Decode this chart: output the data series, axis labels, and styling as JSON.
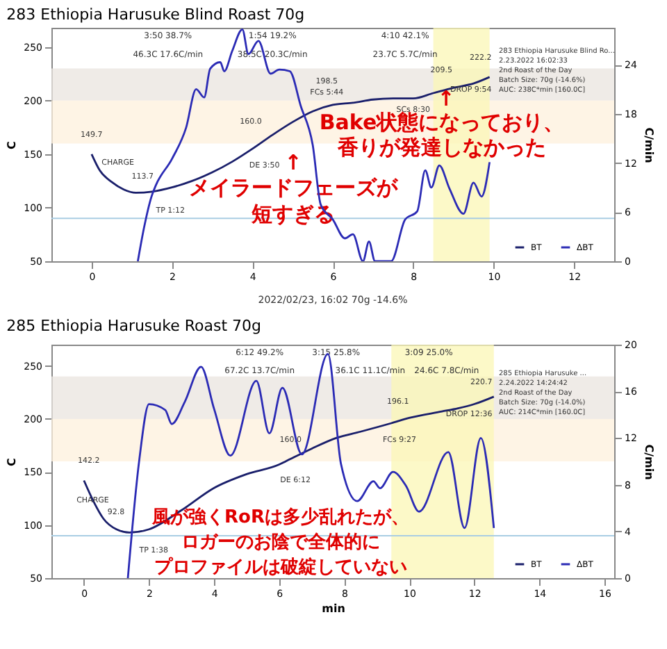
{
  "chart_data": [
    {
      "type": "line",
      "title": "283 Ethiopia Harusuke Blind Roast 70g",
      "ylabel": "C",
      "y2label": "C/min",
      "xlim": [
        -1,
        13
      ],
      "xticks": [
        0,
        2,
        4,
        6,
        8,
        10,
        12
      ],
      "ylim": [
        50,
        268
      ],
      "yticks": [
        50,
        100,
        150,
        200,
        250
      ],
      "y2lim": [
        0,
        28.5
      ],
      "y2ticks": [
        0,
        6,
        12,
        18,
        24
      ],
      "legend": "bottom right",
      "series": [
        {
          "name": "BT",
          "color": "#1a1f6b",
          "x": [
            0,
            0.2,
            0.5,
            0.8,
            1.1,
            1.5,
            2,
            2.5,
            3,
            3.5,
            4,
            4.5,
            5,
            5.5,
            6,
            6.5,
            7,
            7.5,
            8,
            8.5,
            9,
            9.5,
            9.9
          ],
          "values": [
            150,
            135,
            124,
            117,
            114,
            115,
            119,
            125,
            133,
            143,
            155,
            168,
            180,
            190,
            196,
            198,
            201,
            202,
            202,
            207,
            212,
            216,
            222
          ]
        },
        {
          "name": "ΔBT",
          "color": "#2b2bb5",
          "axis": "y2",
          "x": [
            1.15,
            1.3,
            1.49,
            1.6,
            2.0,
            2.35,
            2.6,
            2.8,
            2.95,
            3.2,
            3.3,
            3.5,
            3.75,
            3.9,
            4.15,
            4.45,
            4.67,
            4.93,
            5.2,
            5.5,
            5.7,
            6.0,
            6.3,
            6.5,
            6.75,
            6.9,
            7.05,
            7.45,
            7.8,
            8.1,
            8.3,
            8.45,
            8.65,
            8.9,
            9.25,
            9.5,
            9.7,
            9.9
          ],
          "values": [
            0,
            4,
            7.9,
            9.3,
            12.5,
            16.3,
            21,
            20,
            23.5,
            24.3,
            23.2,
            25.7,
            28.3,
            25.3,
            26.9,
            22.9,
            23.4,
            23.2,
            19,
            14.2,
            6.9,
            5.1,
            2.8,
            3.3,
            0,
            2.4,
            0,
            0,
            5.1,
            6.1,
            11.1,
            9,
            11.7,
            8.9,
            5.8,
            9.6,
            7.9,
            12.1
          ]
        }
      ],
      "bands": [
        {
          "axis": "y",
          "from": 200,
          "to": 230,
          "color": "#e9e4df"
        },
        {
          "axis": "y",
          "from": 160,
          "to": 200,
          "color": "#fdf0dc"
        },
        {
          "axis": "x",
          "from": 8.5,
          "to": 9.9,
          "color": "#fbf7b5"
        }
      ],
      "ref_lines": [
        {
          "axis": "y",
          "value": 90,
          "color": "#a9cde3"
        }
      ],
      "annotations": [
        "3:50  38.7%",
        "1:54  19.2%",
        "4:10  42.1%",
        "46.3C  17.6C/min",
        "38.5C  20.3C/min",
        "23.7C  5.7C/min",
        "149.7",
        "CHARGE",
        "113.7",
        "TP 1:12",
        "160.0",
        "DE 3:50",
        "198.5",
        "FCs 5:44",
        "209.5",
        "SCs 8:30",
        "222.2",
        "DROP 9:54",
        "283 Ethiopia Harusuke Blind Ro...\n2.23.2022 16:02:33\n2nd Roast of the Day\nBatch Size: 70g (-14.6%)\nAUC: 238C*min [160.0C]",
        "↑",
        "Bake状態になっており、",
        "香りが発達しなかった",
        "↑",
        "メイラードフェーズが",
        "短すぎる",
        "2022/02/23, 16:02   70g   -14.6%"
      ]
    },
    {
      "type": "line",
      "title": "285 Ethiopia Harusuke Roast 70g",
      "xlabel": "min",
      "ylabel": "C",
      "y2label": "C/min",
      "xlim": [
        -1,
        16.3
      ],
      "xticks": [
        0,
        2,
        4,
        6,
        8,
        10,
        12,
        14,
        16
      ],
      "ylim": [
        50,
        270
      ],
      "yticks": [
        50,
        100,
        150,
        200,
        250
      ],
      "y2lim": [
        0,
        20
      ],
      "y2ticks": [
        0,
        4,
        8,
        12,
        16,
        20
      ],
      "legend": "bottom right",
      "series": [
        {
          "name": "BT",
          "color": "#1a1f6b",
          "x": [
            0,
            0.3,
            0.6,
            1,
            1.4,
            2,
            3,
            4,
            5,
            6,
            6.2,
            7,
            7.75,
            8.5,
            9.45,
            10,
            11,
            11.5,
            12,
            12.6
          ],
          "values": [
            142,
            122,
            106,
            96,
            93,
            96,
            114,
            135,
            148,
            157,
            160,
            172,
            182,
            188,
            196,
            201,
            207,
            210,
            214,
            221
          ]
        },
        {
          "name": "ΔBT",
          "color": "#2b2bb5",
          "axis": "y2",
          "x": [
            1.35,
            1.7,
            2.0,
            2.5,
            2.7,
            3.1,
            3.6,
            4.0,
            4.5,
            5.3,
            5.7,
            6.1,
            6.7,
            7.5,
            7.9,
            8.4,
            8.9,
            9.1,
            9.5,
            9.9,
            10.3,
            11.2,
            11.7,
            12.2,
            12.6
          ],
          "values": [
            0,
            10.1,
            14.9,
            14.4,
            13.2,
            15.1,
            18.1,
            14.5,
            10.5,
            16.9,
            12.4,
            16.3,
            10.6,
            19.2,
            9.8,
            6.6,
            8.3,
            7.7,
            9.1,
            7.9,
            5.7,
            10.8,
            4.3,
            12,
            4.3
          ]
        }
      ],
      "bands": [
        {
          "axis": "y",
          "from": 200,
          "to": 240,
          "color": "#e9e4df"
        },
        {
          "axis": "y",
          "from": 160,
          "to": 200,
          "color": "#fdf0dc"
        },
        {
          "axis": "x",
          "from": 9.45,
          "to": 12.6,
          "color": "#fbf7b5"
        }
      ],
      "ref_lines": [
        {
          "axis": "y",
          "value": 90,
          "color": "#a9cde3"
        }
      ],
      "annotations": [
        "6:12  49.2%",
        "3:15  25.8%",
        "3:09  25.0%",
        "67.2C  13.7C/min",
        "36.1C  11.1C/min",
        "24.6C  7.8C/min",
        "142.2",
        "CHARGE",
        "92.8",
        "TP 1:38",
        "160.0",
        "DE 6:12",
        "196.1",
        "FCs 9:27",
        "220.7",
        "DROP 12:36",
        "285 Ethiopia Harusuke ...\n2.24.2022 14:24:42\n2nd Roast of the Day\nBatch Size: 70g (-14.0%)\nAUC: 214C*min [160.0C]",
        "風が強くRoRは多少乱れたが、",
        "ロガーのお陰で全体的に",
        "プロファイルは破綻していない"
      ]
    }
  ]
}
